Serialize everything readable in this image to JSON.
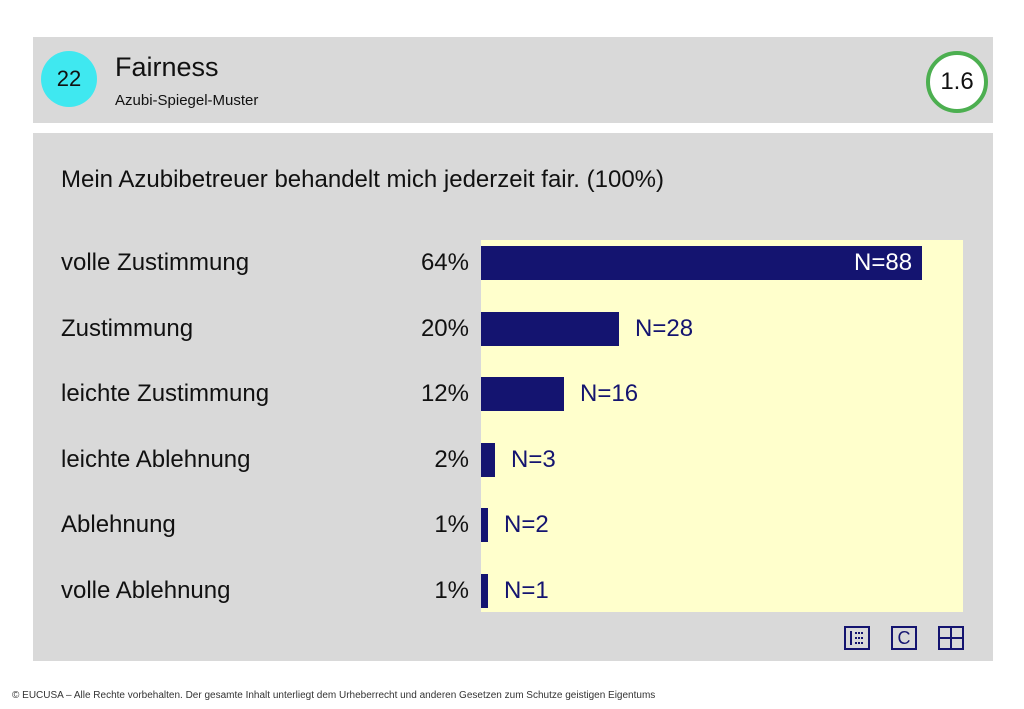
{
  "header": {
    "page_number": "22",
    "title": "Fairness",
    "subtitle": "Azubi-Spiegel-Muster",
    "score": "1.6"
  },
  "chart_data": {
    "type": "bar",
    "orientation": "horizontal",
    "title": "Mein Azubibetreuer behandelt mich jederzeit fair. (100%)",
    "categories": [
      "volle Zustimmung",
      "Zustimmung",
      "leichte Zustimmung",
      "leichte Ablehnung",
      "Ablehnung",
      "volle Ablehnung"
    ],
    "percent_labels": [
      "64%",
      "20%",
      "12%",
      "2%",
      "1%",
      "1%"
    ],
    "values": [
      64,
      20,
      12,
      2,
      1,
      1
    ],
    "n_labels": [
      "N=88",
      "N=28",
      "N=16",
      "N=3",
      "N=2",
      "N=1"
    ],
    "n_values": [
      88,
      28,
      16,
      3,
      2,
      1
    ],
    "xlim": [
      0,
      70
    ],
    "bar_color": "#141470",
    "background_color": "#ffffcc",
    "grid": false,
    "legend": "none"
  },
  "controls": {
    "list_icon": "list-icon",
    "c_button_label": "C",
    "grid_icon": "grid-icon"
  },
  "colors": {
    "badge": "#3fe8f0",
    "score_ring": "#4caf50",
    "panel": "#d9d9d9"
  },
  "footer": {
    "copyright": "© EUCUSA – Alle Rechte vorbehalten. Der gesamte Inhalt unterliegt dem Urheberrecht und anderen Gesetzen zum Schutze geistigen Eigentums"
  }
}
